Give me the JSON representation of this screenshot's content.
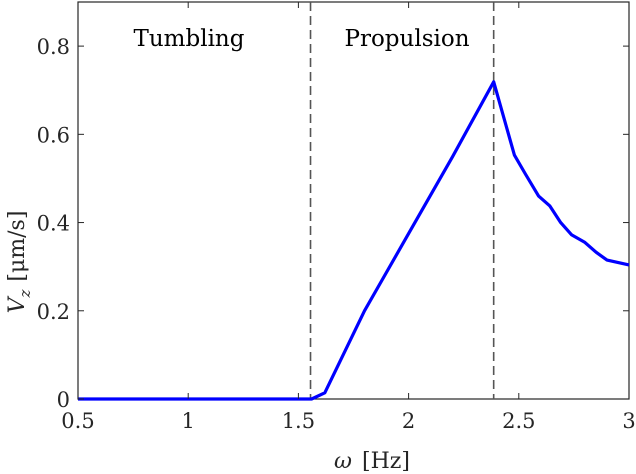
{
  "chart_data": {
    "type": "line",
    "title": "",
    "xlabel": "ω [Hz]",
    "ylabel": "V_z [μm/s]",
    "xlim": [
      0.5,
      3
    ],
    "ylim": [
      0,
      0.9
    ],
    "xticks": [
      0.5,
      1,
      1.5,
      2,
      2.5,
      3
    ],
    "xtick_labels": [
      "0.5",
      "1",
      "1.5",
      "2",
      "2.5",
      "3"
    ],
    "yticks": [
      0,
      0.2,
      0.4,
      0.6,
      0.8
    ],
    "ytick_labels": [
      "0",
      "0.2",
      "0.4",
      "0.6",
      "0.8"
    ],
    "grid": false,
    "legend": null,
    "series": [
      {
        "name": "V_z",
        "color": "#0000ff",
        "x": [
          0.5,
          1.0,
          1.5,
          1.56,
          1.62,
          1.8,
          2.0,
          2.2,
          2.386,
          2.48,
          2.53,
          2.59,
          2.64,
          2.69,
          2.74,
          2.8,
          2.85,
          2.9,
          3.0
        ],
        "y": [
          0,
          0,
          0,
          0,
          0.014,
          0.2,
          0.375,
          0.55,
          0.719,
          0.553,
          0.51,
          0.46,
          0.438,
          0.4,
          0.372,
          0.355,
          0.333,
          0.315,
          0.304
        ]
      }
    ],
    "vlines": [
      {
        "x": 1.555,
        "style": "dashed",
        "color": "#555555"
      },
      {
        "x": 2.386,
        "style": "dashed",
        "color": "#555555"
      }
    ],
    "annotations": [
      {
        "text": "Tumbling",
        "x": 1.0,
        "y": 0.81
      },
      {
        "text": "Propulsion",
        "x": 1.97,
        "y": 0.81
      }
    ]
  },
  "labels": {
    "tumbling": "Tumbling",
    "propulsion": "Propulsion",
    "xlabel_symbol": "ω",
    "xlabel_unit": "[Hz]",
    "ylabel_symbol": "V",
    "ylabel_sub": "z",
    "ylabel_unit": "[μm/s]"
  }
}
